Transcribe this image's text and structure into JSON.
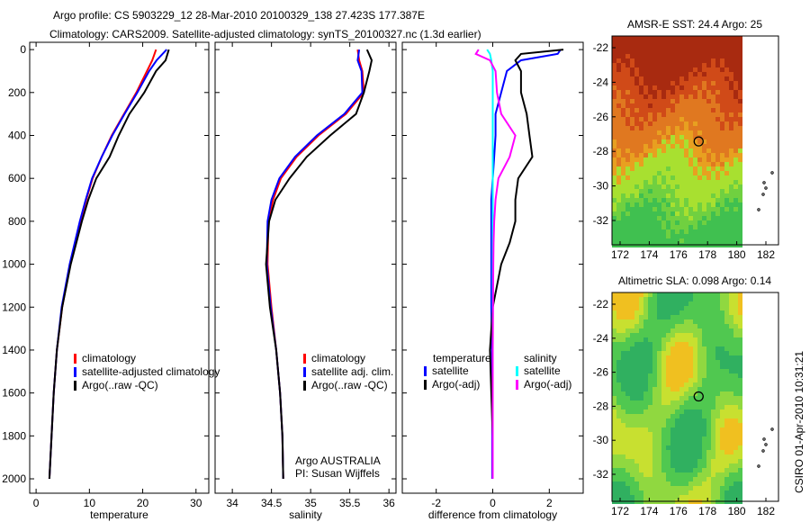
{
  "title_line1": "Argo profile: CS 5903229_12 28-Mar-2010 20100329_138 27.423S 177.387E",
  "title_line2": "Climatology: CARS2009. Satellite-adjusted climatology: synTS_20100327.nc (1.3d earlier)",
  "side_label": "CSIRO 01-Apr-2010 10:31:21",
  "colors": {
    "climatology": "#ff0000",
    "satellite": "#0000ff",
    "argo": "#000000",
    "sal_sat": "#00ffff",
    "sal_argo": "#ff00ff"
  },
  "chart_data": [
    {
      "type": "line",
      "xlabel": "temperature",
      "xlim": [
        -1.2,
        32.4
      ],
      "ylim": [
        2067,
        -34
      ],
      "xticks": [
        "0",
        "10",
        "20",
        "30"
      ],
      "yticks": [
        "0",
        "200",
        "400",
        "600",
        "800",
        "1000",
        "1200",
        "1400",
        "1600",
        "1800",
        "2000"
      ],
      "legend": [
        "climatology",
        "satellite-adjusted climatology",
        "Argo(..raw -QC)"
      ],
      "depth": [
        0,
        50,
        100,
        200,
        300,
        400,
        500,
        600,
        700,
        800,
        1000,
        1200,
        1400,
        1600,
        1800,
        2000
      ],
      "series": [
        {
          "name": "climatology",
          "values": [
            22.5,
            21.8,
            20.8,
            18.8,
            16.5,
            14.2,
            12.3,
            10.6,
            9.4,
            8.3,
            6.4,
            4.9,
            3.9,
            3.3,
            2.9,
            2.5
          ]
        },
        {
          "name": "satellite-adjusted climatology",
          "values": [
            24.5,
            22.6,
            21.2,
            19,
            16.6,
            14.3,
            12.3,
            10.5,
            9.3,
            8.2,
            6.3,
            4.8,
            3.9,
            3.3,
            2.9,
            2.5
          ]
        },
        {
          "name": "Argo(..raw -QC)",
          "values": [
            24.9,
            24.3,
            22.5,
            20.3,
            17.5,
            15.5,
            13.8,
            11.3,
            9.8,
            8.6,
            6.5,
            4.9,
            3.9,
            3.3,
            2.9,
            2.5
          ]
        }
      ]
    },
    {
      "type": "line",
      "xlabel": "salinity",
      "xlim": [
        33.78,
        36.09
      ],
      "ylim": [
        2067,
        -34
      ],
      "xticks": [
        "34",
        "34.5",
        "35",
        "35.5",
        "36"
      ],
      "legend": [
        "climatology",
        "satellite adj. clim.",
        "Argo(..raw -QC)"
      ],
      "annotation": [
        "Argo AUSTRALIA",
        "PI: Susan Wijffels"
      ],
      "depth": [
        0,
        50,
        100,
        200,
        300,
        400,
        500,
        600,
        700,
        800,
        1000,
        1200,
        1400,
        1600,
        1800,
        2000
      ],
      "series": [
        {
          "name": "climatology",
          "values": [
            35.6,
            35.62,
            35.66,
            35.68,
            35.45,
            35.1,
            34.82,
            34.62,
            34.52,
            34.46,
            34.45,
            34.5,
            34.56,
            34.61,
            34.64,
            34.65
          ]
        },
        {
          "name": "satellite adj. clim.",
          "values": [
            35.62,
            35.6,
            35.65,
            35.66,
            35.43,
            35.08,
            34.8,
            34.6,
            34.5,
            34.45,
            34.44,
            34.49,
            34.56,
            34.61,
            34.64,
            34.65
          ]
        },
        {
          "name": "Argo(..raw -QC)",
          "values": [
            35.72,
            35.78,
            35.75,
            35.68,
            35.58,
            35.25,
            34.95,
            34.73,
            34.55,
            34.47,
            34.43,
            34.48,
            34.56,
            34.61,
            34.64,
            34.65
          ]
        }
      ]
    },
    {
      "type": "line",
      "xlabel": "difference from climatology",
      "xlim": [
        -3.2,
        3.2
      ],
      "ylim": [
        2067,
        -34
      ],
      "xticks": [
        "-2",
        "0",
        "2"
      ],
      "legend_headers": [
        "temperature",
        "salinity"
      ],
      "legend": [
        "satellite",
        "Argo(-adj)",
        "satellite",
        "Argo(-adj)"
      ],
      "depth": [
        0,
        20,
        50,
        100,
        200,
        300,
        400,
        500,
        600,
        700,
        800,
        900,
        1000,
        1200,
        1400,
        1600,
        1800,
        2000
      ],
      "series": [
        {
          "name": "temperature satellite",
          "values": [
            2.4,
            2.3,
            1.0,
            0.5,
            0.3,
            0.1,
            0.1,
            0.05,
            0,
            -0.05,
            -0.05,
            -0.05,
            -0.05,
            -0.05,
            -0.03,
            -0.02,
            -0.02,
            -0.02
          ]
        },
        {
          "name": "temperature Argo(-adj)",
          "values": [
            2.5,
            1.0,
            0.8,
            1.0,
            1.0,
            1.2,
            1.3,
            1.4,
            0.9,
            0.8,
            0.8,
            0.6,
            0.3,
            0.0,
            -0.1,
            -0.05,
            0,
            0
          ]
        },
        {
          "name": "salinity satellite",
          "values": [
            -0.2,
            -0.1,
            -0.05,
            0,
            0,
            0,
            0,
            0,
            0,
            0,
            0,
            0,
            0,
            0,
            0,
            0,
            0,
            0
          ]
        },
        {
          "name": "salinity Argo(-adj)",
          "values": [
            -0.5,
            -0.6,
            -0.1,
            0.1,
            0.15,
            0.3,
            0.8,
            0.6,
            0.2,
            0.1,
            0.05,
            0.03,
            0.02,
            0.01,
            0,
            0,
            0,
            0
          ]
        }
      ]
    },
    {
      "type": "heatmap",
      "title": "AMSR-E SST: 24.4 Argo: 25",
      "xticks": [
        "172",
        "174",
        "176",
        "178",
        "180",
        "182"
      ],
      "yticks": [
        "-22",
        "-24",
        "-26",
        "-28",
        "-30",
        "-32"
      ],
      "marker": [
        177.387,
        -27.423
      ]
    },
    {
      "type": "heatmap",
      "title": "Altimetric SLA: 0.098 Argo: 0.14",
      "xticks": [
        "172",
        "174",
        "176",
        "178",
        "180",
        "182"
      ],
      "yticks": [
        "-22",
        "-24",
        "-26",
        "-28",
        "-30",
        "-32"
      ],
      "marker": [
        177.387,
        -27.423
      ]
    }
  ]
}
